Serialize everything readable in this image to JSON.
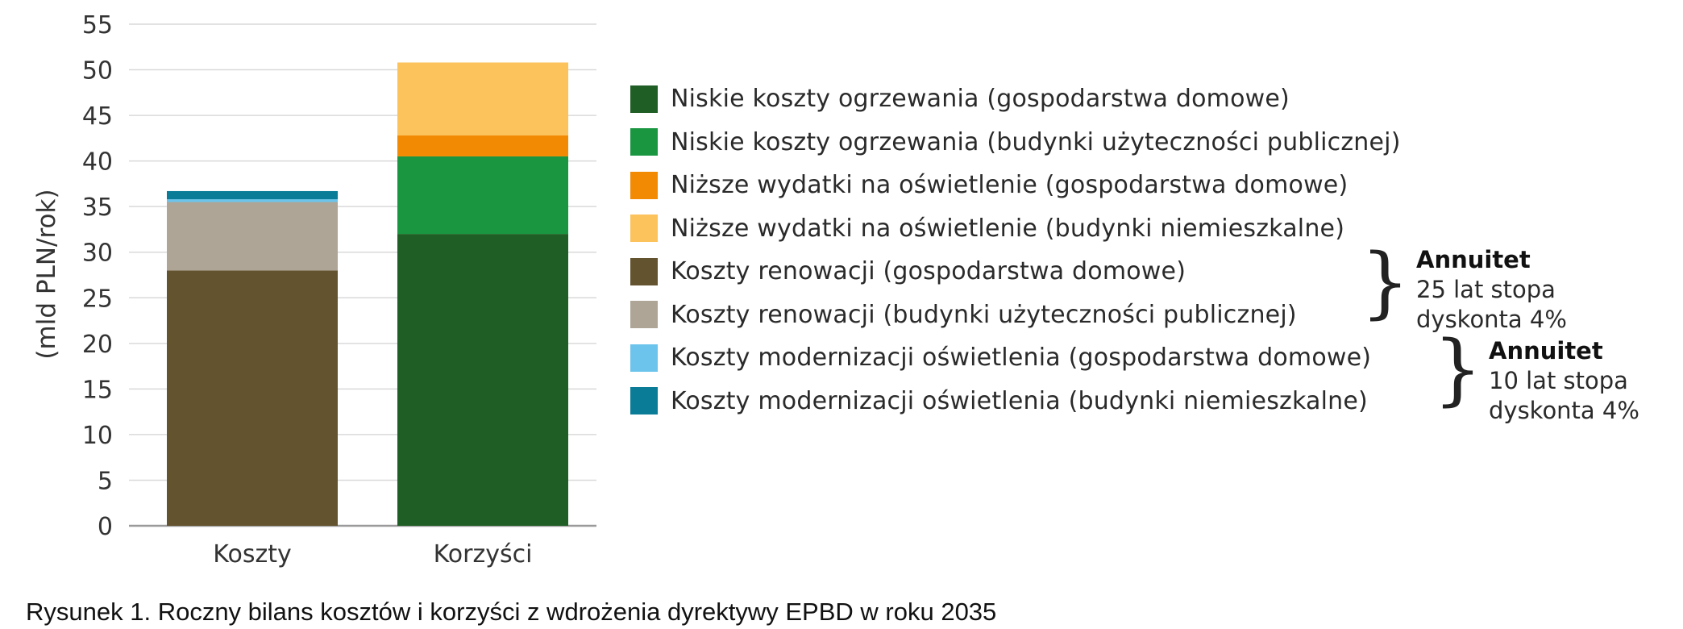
{
  "chart_data": {
    "type": "bar",
    "stacked": true,
    "categories": [
      "Koszty",
      "Korzyści"
    ],
    "ylabel": "(mld PLN/rok)",
    "ylim": [
      0,
      55
    ],
    "yticks": [
      0,
      5,
      10,
      15,
      20,
      25,
      30,
      35,
      40,
      45,
      50,
      55
    ],
    "grid": true,
    "legend_position": "right",
    "series": [
      {
        "name": "Niskie koszty ogrzewania (gospodarstwa domowe)",
        "color": "#1f5e24",
        "values": [
          0,
          32.0
        ]
      },
      {
        "name": "Niskie koszty ogrzewania (budynki użyteczności publicznej)",
        "color": "#1a9641",
        "values": [
          0,
          8.5
        ]
      },
      {
        "name": "Niższe wydatki na oświetlenie (gospodarstwa domowe)",
        "color": "#f28a04",
        "values": [
          0,
          2.3
        ]
      },
      {
        "name": "Niższe wydatki na oświetlenie (budynki niemieszkalne)",
        "color": "#fcc25b",
        "values": [
          0,
          8.0
        ]
      },
      {
        "name": "Koszty renowacji (gospodarstwa domowe)",
        "color": "#63532e",
        "values": [
          28.0,
          0
        ]
      },
      {
        "name": "Koszty renowacji (budynki użyteczności publicznej)",
        "color": "#aea596",
        "values": [
          7.5,
          0
        ]
      },
      {
        "name": "Koszty modernizacji oświetlenia (gospodarstwa domowe)",
        "color": "#6cc4ec",
        "values": [
          0.3,
          0
        ]
      },
      {
        "name": "Koszty modernizacji oświetlenia (budynki niemieszkalne)",
        "color": "#0a7c98",
        "values": [
          0.9,
          0
        ]
      }
    ],
    "annotations": [
      {
        "title": "Annuitet",
        "line1": "25 lat stopa",
        "line2": "dyskonta 4%"
      },
      {
        "title": "Annuitet",
        "line1": "10 lat stopa",
        "line2": "dyskonta 4%"
      }
    ],
    "caption": "Rysunek 1. Roczny bilans kosztów i korzyści z wdrożenia dyrektywy EPBD w roku 2035"
  }
}
